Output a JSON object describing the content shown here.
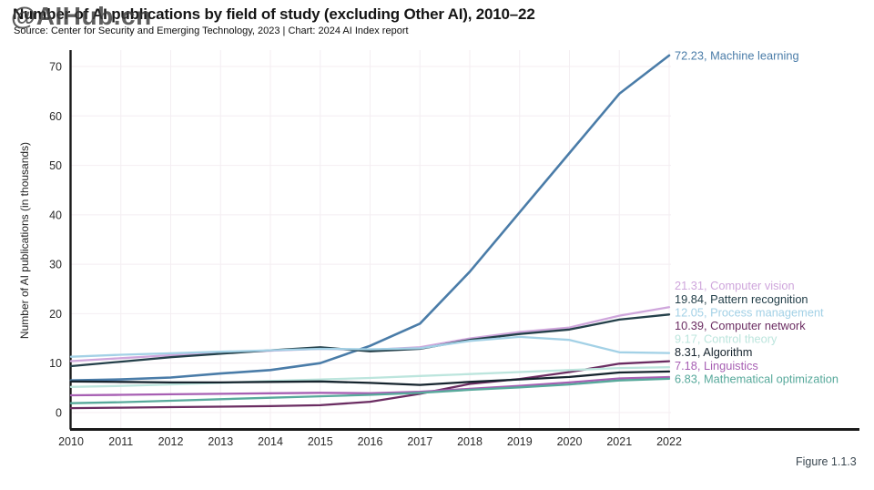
{
  "watermark": "@AIHub.cn",
  "header": {
    "title": "Number of AI publications by field of study (excluding Other AI), 2010–22",
    "source_line": "Source: Center for Security and Emerging Technology, 2023 | Chart: 2024 AI Index report"
  },
  "figure_label": "Figure 1.1.3",
  "colors": {
    "axis": "#1a1a1a",
    "grid": "#f4eef2",
    "tick_text": "#2a2a2a",
    "background": "#ffffff"
  },
  "chart_data": {
    "type": "line",
    "title": "Number of AI publications by field of study (excluding Other AI), 2010–22",
    "xlabel": "",
    "ylabel": "Number of AI publications (in thousands)",
    "x": [
      2010,
      2011,
      2012,
      2013,
      2014,
      2015,
      2016,
      2017,
      2018,
      2019,
      2020,
      2021,
      2022
    ],
    "xticks": [
      "2010",
      "2011",
      "2012",
      "2013",
      "2014",
      "2015",
      "2016",
      "2017",
      "2018",
      "2019",
      "2020",
      "2021",
      "2022"
    ],
    "yticks": [
      0,
      10,
      20,
      30,
      40,
      50,
      60,
      70
    ],
    "ylim": [
      0,
      75
    ],
    "grid": true,
    "legend_position": "right-edge-labels",
    "series": [
      {
        "name": "Machine learning",
        "label": "72.23, Machine learning",
        "color": "#4a7ca8",
        "values": [
          6.5,
          6.7,
          7.1,
          7.9,
          8.6,
          10.0,
          13.5,
          18.0,
          28.5,
          40.5,
          52.5,
          64.5,
          72.23
        ]
      },
      {
        "name": "Computer vision",
        "label": "21.31, Computer vision",
        "color": "#cfa6dc",
        "values": [
          10.4,
          11.0,
          11.6,
          12.1,
          12.5,
          12.9,
          12.7,
          13.2,
          15.0,
          16.3,
          17.2,
          19.6,
          21.31
        ]
      },
      {
        "name": "Pattern recognition",
        "label": "19.84, Pattern recognition",
        "color": "#24404a",
        "values": [
          9.4,
          10.3,
          11.2,
          11.9,
          12.6,
          13.2,
          12.4,
          12.9,
          14.7,
          15.9,
          16.8,
          18.8,
          19.84
        ]
      },
      {
        "name": "Process management",
        "label": "12.05, Process management",
        "color": "#a3d1e6",
        "values": [
          11.3,
          11.7,
          12.0,
          12.3,
          12.6,
          12.9,
          12.8,
          13.0,
          14.5,
          15.3,
          14.7,
          12.2,
          12.05
        ]
      },
      {
        "name": "Computer network",
        "label": "10.39, Computer network",
        "color": "#6b2d62",
        "values": [
          0.9,
          1.0,
          1.1,
          1.2,
          1.3,
          1.5,
          2.2,
          3.8,
          5.8,
          6.8,
          8.2,
          9.9,
          10.39
        ]
      },
      {
        "name": "Control theory",
        "label": "9.17, Control theory",
        "color": "#bce5dd",
        "values": [
          5.2,
          5.4,
          5.7,
          6.0,
          6.4,
          6.7,
          7.0,
          7.4,
          7.8,
          8.2,
          8.6,
          9.0,
          9.17
        ]
      },
      {
        "name": "Algorithm",
        "label": "8.31, Algorithm",
        "color": "#16242e",
        "values": [
          6.3,
          6.2,
          6.1,
          6.1,
          6.2,
          6.3,
          6.0,
          5.6,
          6.2,
          6.7,
          7.2,
          8.1,
          8.31
        ]
      },
      {
        "name": "Linguistics",
        "label": "7.18, Linguistics",
        "color": "#a75fb3",
        "values": [
          3.5,
          3.6,
          3.7,
          3.8,
          3.9,
          4.0,
          3.9,
          4.2,
          4.8,
          5.4,
          6.1,
          6.9,
          7.18
        ]
      },
      {
        "name": "Mathematical optimization",
        "label": "6.83, Mathematical optimization",
        "color": "#57a99b",
        "values": [
          1.9,
          2.1,
          2.4,
          2.7,
          3.0,
          3.3,
          3.6,
          4.0,
          4.6,
          5.1,
          5.7,
          6.5,
          6.83
        ]
      }
    ]
  }
}
